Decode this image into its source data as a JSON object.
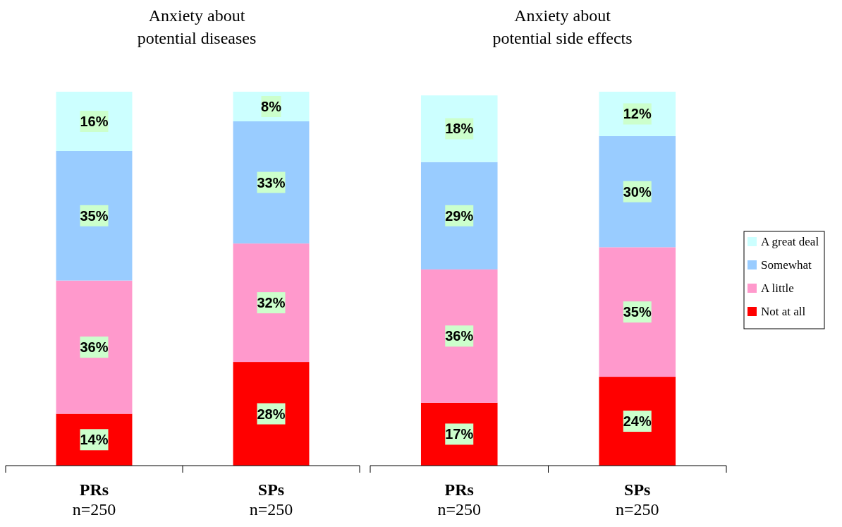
{
  "chart_data": [
    {
      "type": "bar",
      "title": "Anxiety about\npotential diseases",
      "stacked": true,
      "legend": false,
      "categories": [
        "PRs\nn=250",
        "SPs\nn=250"
      ],
      "series": [
        {
          "color": "#ff0000",
          "values": [
            14,
            28
          ],
          "value_labels": [
            "14%",
            "28%"
          ]
        },
        {
          "color": "#ff99cc",
          "values": [
            36,
            32
          ],
          "value_labels": [
            "36%",
            "32%"
          ]
        },
        {
          "color": "#99ccff",
          "values": [
            35,
            33
          ],
          "value_labels": [
            "35%",
            "33%"
          ]
        },
        {
          "color": "#ccffff",
          "values": [
            16,
            8
          ],
          "value_labels": [
            "16%",
            "8%"
          ]
        }
      ]
    },
    {
      "type": "bar",
      "title": "Anxiety about\npotential side effects",
      "stacked": true,
      "legend": "right",
      "categories": [
        "PRs\nn=250",
        "SPs\nn=250"
      ],
      "series": [
        {
          "name": "Not at all",
          "color": "#ff0000",
          "values": [
            17,
            24
          ],
          "value_labels": [
            "17%",
            "24%"
          ]
        },
        {
          "name": "A little",
          "color": "#ff99cc",
          "values": [
            36,
            35
          ],
          "value_labels": [
            "36%",
            "35%"
          ]
        },
        {
          "name": "Somewhat",
          "color": "#99ccff",
          "values": [
            29,
            30
          ],
          "value_labels": [
            "29%",
            "30%"
          ]
        },
        {
          "name": "A great deal",
          "color": "#ccffff",
          "values": [
            18,
            12
          ],
          "value_labels": [
            "18%",
            "12%"
          ]
        }
      ]
    }
  ]
}
